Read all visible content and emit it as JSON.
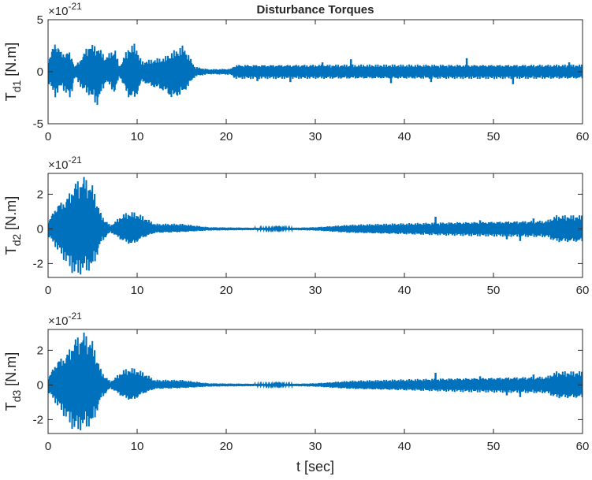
{
  "figure": {
    "title": "Disturbance Torques",
    "xlabel": "t [sec]"
  },
  "chart_data": [
    {
      "type": "line",
      "title": "Disturbance Torques",
      "xlabel": "",
      "ylabel_main": "T",
      "ylabel_sub": "d1",
      "ylabel_unit": " [N.m]",
      "exponent_base": "×10",
      "exponent_power": "-21",
      "xlim": [
        0,
        60
      ],
      "ylim": [
        -5,
        5
      ],
      "x_ticks": [
        0,
        10,
        20,
        30,
        40,
        50,
        60
      ],
      "y_ticks": [
        -5,
        0,
        5
      ],
      "grid": false,
      "series": [
        {
          "color": "#0072BD",
          "envelope": [
            {
              "t": 0,
              "lo": -1.0,
              "hi": 1.0
            },
            {
              "t": 0.8,
              "lo": -2.5,
              "hi": 3.2
            },
            {
              "t": 1.5,
              "lo": -1.5,
              "hi": 2.0
            },
            {
              "t": 2.5,
              "lo": -2.8,
              "hi": 2.0
            },
            {
              "t": 3.0,
              "lo": -0.5,
              "hi": 0.5
            },
            {
              "t": 4.0,
              "lo": -2.0,
              "hi": 1.8
            },
            {
              "t": 4.5,
              "lo": -2.2,
              "hi": 2.8
            },
            {
              "t": 5.5,
              "lo": -3.4,
              "hi": 2.6
            },
            {
              "t": 6.5,
              "lo": -1.0,
              "hi": 1.5
            },
            {
              "t": 7.5,
              "lo": -2.2,
              "hi": 2.4
            },
            {
              "t": 8.0,
              "lo": -0.4,
              "hi": 0.5
            },
            {
              "t": 9.0,
              "lo": -2.6,
              "hi": 2.4
            },
            {
              "t": 9.8,
              "lo": -2.8,
              "hi": 2.8
            },
            {
              "t": 10.5,
              "lo": -1.0,
              "hi": 1.0
            },
            {
              "t": 11.5,
              "lo": -1.5,
              "hi": 1.2
            },
            {
              "t": 13.0,
              "lo": -2.0,
              "hi": 1.4
            },
            {
              "t": 14.0,
              "lo": -2.8,
              "hi": 2.0
            },
            {
              "t": 15.2,
              "lo": -2.2,
              "hi": 2.6
            },
            {
              "t": 16.5,
              "lo": -0.5,
              "hi": 0.5
            },
            {
              "t": 18.0,
              "lo": -0.25,
              "hi": 0.25
            },
            {
              "t": 20.5,
              "lo": -0.3,
              "hi": 0.3
            },
            {
              "t": 21.0,
              "lo": -0.7,
              "hi": 0.7
            },
            {
              "t": 40.0,
              "lo": -0.7,
              "hi": 0.7
            },
            {
              "t": 60.0,
              "lo": -0.7,
              "hi": 0.7
            }
          ],
          "spikes": [
            {
              "t": 23.5,
              "v": -0.9
            },
            {
              "t": 27.2,
              "v": -1.0
            },
            {
              "t": 30.8,
              "v": 0.9
            },
            {
              "t": 34.0,
              "v": 1.2
            },
            {
              "t": 38.5,
              "v": -1.1
            },
            {
              "t": 43.0,
              "v": -1.0
            },
            {
              "t": 47.0,
              "v": 1.3
            },
            {
              "t": 52.2,
              "v": -1.2
            },
            {
              "t": 58.5,
              "v": 0.9
            }
          ]
        }
      ]
    },
    {
      "type": "line",
      "title": "",
      "xlabel": "",
      "ylabel_main": "T",
      "ylabel_sub": "d2",
      "ylabel_unit": " [N.m]",
      "exponent_base": "×10",
      "exponent_power": "-21",
      "xlim": [
        0,
        60
      ],
      "ylim": [
        -2.8,
        3.2
      ],
      "x_ticks": [
        0,
        10,
        20,
        30,
        40,
        50,
        60
      ],
      "y_ticks": [
        -2,
        0,
        2
      ],
      "grid": false,
      "series": [
        {
          "color": "#0072BD",
          "envelope": [
            {
              "t": 0,
              "lo": -0.4,
              "hi": 0.4
            },
            {
              "t": 1.0,
              "lo": -1.2,
              "hi": 1.5
            },
            {
              "t": 2.0,
              "lo": -2.0,
              "hi": 1.8
            },
            {
              "t": 3.0,
              "lo": -2.8,
              "hi": 2.8
            },
            {
              "t": 4.0,
              "lo": -2.6,
              "hi": 3.2
            },
            {
              "t": 5.0,
              "lo": -2.4,
              "hi": 2.6
            },
            {
              "t": 6.0,
              "lo": -0.8,
              "hi": 0.8
            },
            {
              "t": 7.0,
              "lo": -0.2,
              "hi": 0.2
            },
            {
              "t": 8.5,
              "lo": -0.8,
              "hi": 0.9
            },
            {
              "t": 9.5,
              "lo": -1.0,
              "hi": 1.0
            },
            {
              "t": 10.5,
              "lo": -0.6,
              "hi": 0.8
            },
            {
              "t": 12.0,
              "lo": -0.25,
              "hi": 0.3
            },
            {
              "t": 15.0,
              "lo": -0.2,
              "hi": 0.3
            },
            {
              "t": 18.0,
              "lo": -0.1,
              "hi": 0.1
            },
            {
              "t": 26.0,
              "lo": -0.05,
              "hi": 0.05
            },
            {
              "t": 30.0,
              "lo": -0.1,
              "hi": 0.1
            },
            {
              "t": 34.0,
              "lo": -0.25,
              "hi": 0.25
            },
            {
              "t": 45.0,
              "lo": -0.4,
              "hi": 0.4
            },
            {
              "t": 56.0,
              "lo": -0.5,
              "hi": 0.5
            },
            {
              "t": 57.0,
              "lo": -0.8,
              "hi": 0.8
            },
            {
              "t": 60.0,
              "lo": -0.8,
              "hi": 0.8
            }
          ],
          "spikes": [
            {
              "t": 43.5,
              "v": 0.7
            },
            {
              "t": 48.5,
              "v": 0.5
            },
            {
              "t": 51.5,
              "v": -0.6
            },
            {
              "t": 53.0,
              "v": -0.7
            },
            {
              "t": 54.5,
              "v": 0.6
            }
          ]
        }
      ]
    },
    {
      "type": "line",
      "title": "",
      "xlabel": "t [sec]",
      "ylabel_main": "T",
      "ylabel_sub": "d3",
      "ylabel_unit": " [N.m]",
      "exponent_base": "×10",
      "exponent_power": "-21",
      "xlim": [
        0,
        60
      ],
      "ylim": [
        -2.8,
        3.2
      ],
      "x_ticks": [
        0,
        10,
        20,
        30,
        40,
        50,
        60
      ],
      "y_ticks": [
        -2,
        0,
        2
      ],
      "grid": false,
      "series": [
        {
          "color": "#0072BD",
          "envelope": [
            {
              "t": 0,
              "lo": -0.4,
              "hi": 0.4
            },
            {
              "t": 1.0,
              "lo": -1.2,
              "hi": 1.5
            },
            {
              "t": 2.0,
              "lo": -2.0,
              "hi": 1.8
            },
            {
              "t": 3.0,
              "lo": -2.8,
              "hi": 2.8
            },
            {
              "t": 4.0,
              "lo": -2.6,
              "hi": 3.2
            },
            {
              "t": 5.0,
              "lo": -2.4,
              "hi": 2.6
            },
            {
              "t": 6.0,
              "lo": -0.8,
              "hi": 0.8
            },
            {
              "t": 7.0,
              "lo": -0.2,
              "hi": 0.2
            },
            {
              "t": 8.5,
              "lo": -0.8,
              "hi": 0.9
            },
            {
              "t": 9.5,
              "lo": -1.0,
              "hi": 1.0
            },
            {
              "t": 10.5,
              "lo": -0.6,
              "hi": 0.8
            },
            {
              "t": 12.0,
              "lo": -0.25,
              "hi": 0.3
            },
            {
              "t": 15.0,
              "lo": -0.2,
              "hi": 0.3
            },
            {
              "t": 18.0,
              "lo": -0.1,
              "hi": 0.1
            },
            {
              "t": 26.0,
              "lo": -0.05,
              "hi": 0.05
            },
            {
              "t": 30.0,
              "lo": -0.1,
              "hi": 0.1
            },
            {
              "t": 34.0,
              "lo": -0.25,
              "hi": 0.25
            },
            {
              "t": 45.0,
              "lo": -0.4,
              "hi": 0.4
            },
            {
              "t": 56.0,
              "lo": -0.5,
              "hi": 0.5
            },
            {
              "t": 57.0,
              "lo": -0.8,
              "hi": 0.8
            },
            {
              "t": 60.0,
              "lo": -0.8,
              "hi": 0.8
            }
          ],
          "spikes": [
            {
              "t": 43.5,
              "v": 0.7
            },
            {
              "t": 48.5,
              "v": 0.5
            },
            {
              "t": 51.5,
              "v": -0.6
            },
            {
              "t": 53.0,
              "v": -0.7
            },
            {
              "t": 54.5,
              "v": 0.6
            }
          ]
        }
      ]
    }
  ]
}
